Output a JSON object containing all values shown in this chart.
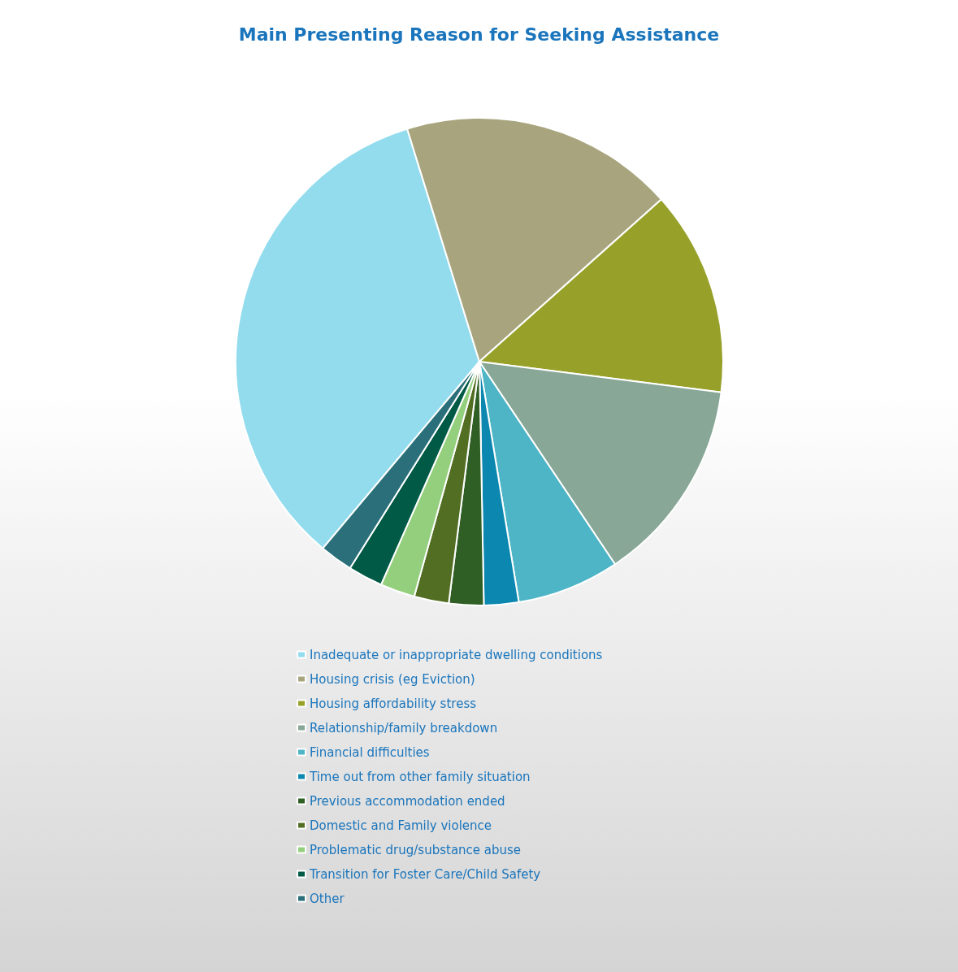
{
  "chart_data": {
    "type": "pie",
    "title": "Main Presenting Reason for Seeking Assistance",
    "categories": [
      "Inadequate or inappropriate dwelling conditions",
      "Housing crisis (eg Eviction)",
      "Housing affordability stress",
      "Relationship/family breakdown",
      "Financial difficulties",
      "Time out from other family situation",
      "Previous accommodation ended",
      "Domestic and Family violence",
      "Problematic drug/substance abuse",
      "Transition for Foster Care/Child Safety",
      "Other"
    ],
    "values": [
      34.1,
      18.2,
      13.6,
      13.6,
      6.8,
      2.3,
      2.3,
      2.3,
      2.3,
      2.3,
      2.2
    ],
    "colors": [
      "#92dcee",
      "#a8a57e",
      "#97a12a",
      "#88a797",
      "#4db5c6",
      "#0b87b0",
      "#2f5f24",
      "#516e22",
      "#93cf7c",
      "#005a45",
      "#2a6f7a"
    ],
    "legend": "bottom"
  }
}
